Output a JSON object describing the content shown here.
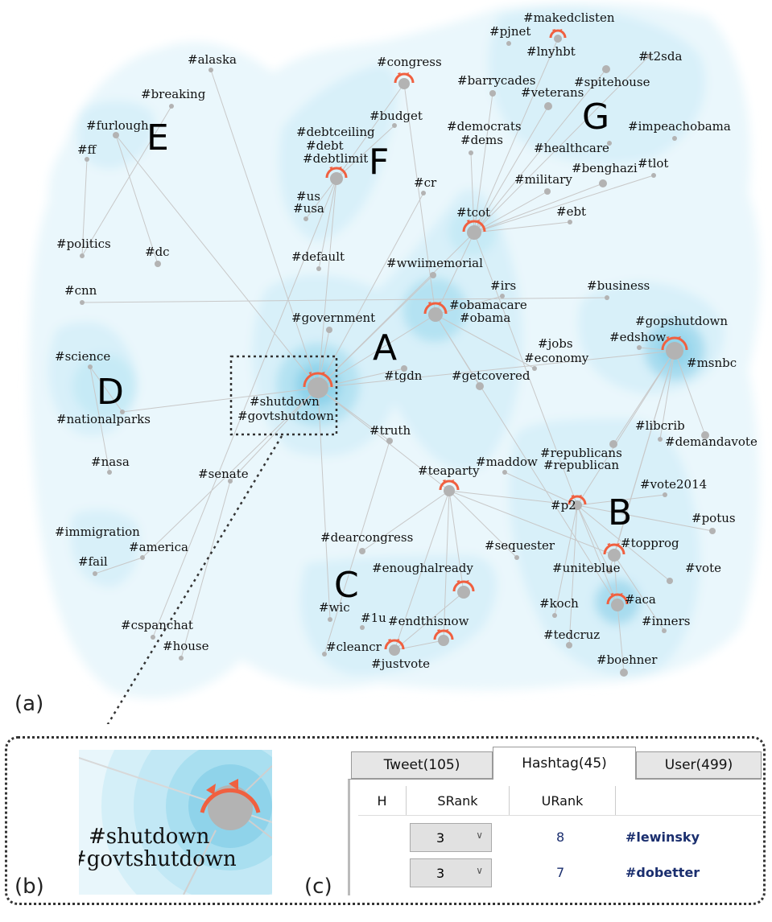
{
  "colors": {
    "density_light": "#e4f5fb",
    "density_mid": "#bfe7f4",
    "density_dark": "#8fd3ea",
    "node": "#b3b3b3",
    "edge": "#c8c8c8",
    "marker": "#f06040"
  },
  "panel_labels": {
    "a": "(a)",
    "b": "(b)",
    "c": "(c)"
  },
  "clusters": [
    "A",
    "B",
    "C",
    "D",
    "E",
    "F",
    "G"
  ],
  "hashtags": [
    "#alaska",
    "#breaking",
    "#furlough",
    "#ff",
    "#congress",
    "#budget",
    "#debtceiling",
    "#debt",
    "#debtlimit",
    "#us",
    "#usa",
    "#cr",
    "#makedclisten",
    "#pjnet",
    "#lnyhbt",
    "#t2sda",
    "#barrycades",
    "#spitehouse",
    "#veterans",
    "#democrats",
    "#dems",
    "#impeachobama",
    "#healthcare",
    "#benghazi",
    "#tlot",
    "#military",
    "#tcot",
    "#ebt",
    "#politics",
    "#dc",
    "#default",
    "#wwiimemorial",
    "#cnn",
    "#irs",
    "#business",
    "#obamacare",
    "#obama",
    "#government",
    "#gopshutdown",
    "#edshow",
    "#jobs",
    "#economy",
    "#msnbc",
    "#science",
    "#tgdn",
    "#getcovered",
    "#shutdown",
    "#govtshutdown",
    "#nationalparks",
    "#libcrib",
    "#truth",
    "#demandavote",
    "#republicans",
    "#republican",
    "#maddow",
    "#nasa",
    "#senate",
    "#teaparty",
    "#vote2014",
    "#p2",
    "#potus",
    "#immigration",
    "#dearcongress",
    "#america",
    "#sequester",
    "#topprog",
    "#fail",
    "#enoughalready",
    "#uniteblue",
    "#vote",
    "#aca",
    "#wic",
    "#1u",
    "#endthisnow",
    "#koch",
    "#inners",
    "#cspanchat",
    "#tedcruz",
    "#house",
    "#cleancr",
    "#justvote",
    "#boehner"
  ],
  "zoom": {
    "line1": "#shutdown",
    "line2": "#govtshutdown"
  },
  "table": {
    "tabs": [
      "Tweet(105)",
      "Hashtag(45)",
      "User(499)"
    ],
    "active_tab": "Hashtag(45)",
    "columns": [
      "H",
      "SRank",
      "URank",
      ""
    ],
    "rows": [
      {
        "srank": "3",
        "urank": "8",
        "hashtag": "#lewinsky"
      },
      {
        "srank": "3",
        "urank": "7",
        "hashtag": "#dobetter"
      }
    ]
  }
}
